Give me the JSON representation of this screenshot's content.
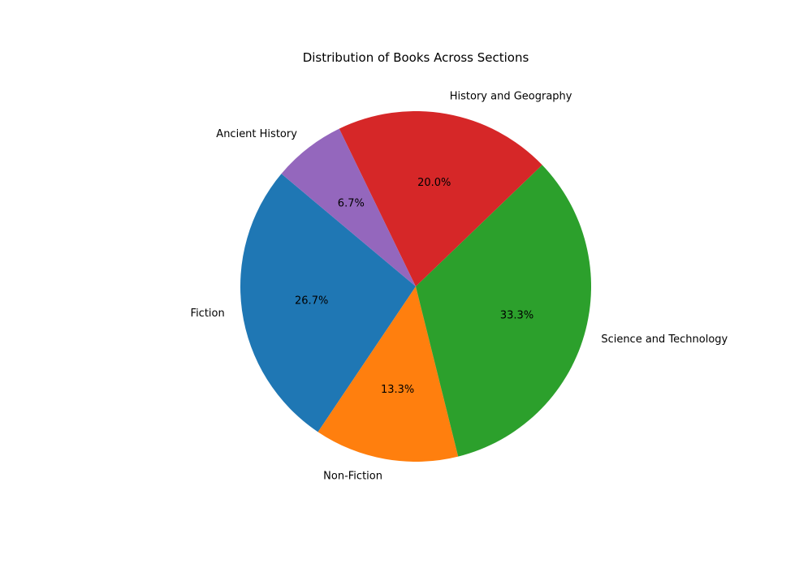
{
  "chart_data": {
    "type": "pie",
    "title": "Distribution of Books Across Sections",
    "slices": [
      {
        "label": "Fiction",
        "value": 26.7,
        "pct_label": "26.7%",
        "color": "#1f77b4"
      },
      {
        "label": "Non-Fiction",
        "value": 13.3,
        "pct_label": "13.3%",
        "color": "#ff7f0e"
      },
      {
        "label": "Science and Technology",
        "value": 33.3,
        "pct_label": "33.3%",
        "color": "#2ca02c"
      },
      {
        "label": "History and Geography",
        "value": 20.0,
        "pct_label": "20.0%",
        "color": "#d62728"
      },
      {
        "label": "Ancient History",
        "value": 6.7,
        "pct_label": "6.7%",
        "color": "#9467bd"
      }
    ],
    "start_angle_deg": 140,
    "direction": "counterclockwise"
  }
}
